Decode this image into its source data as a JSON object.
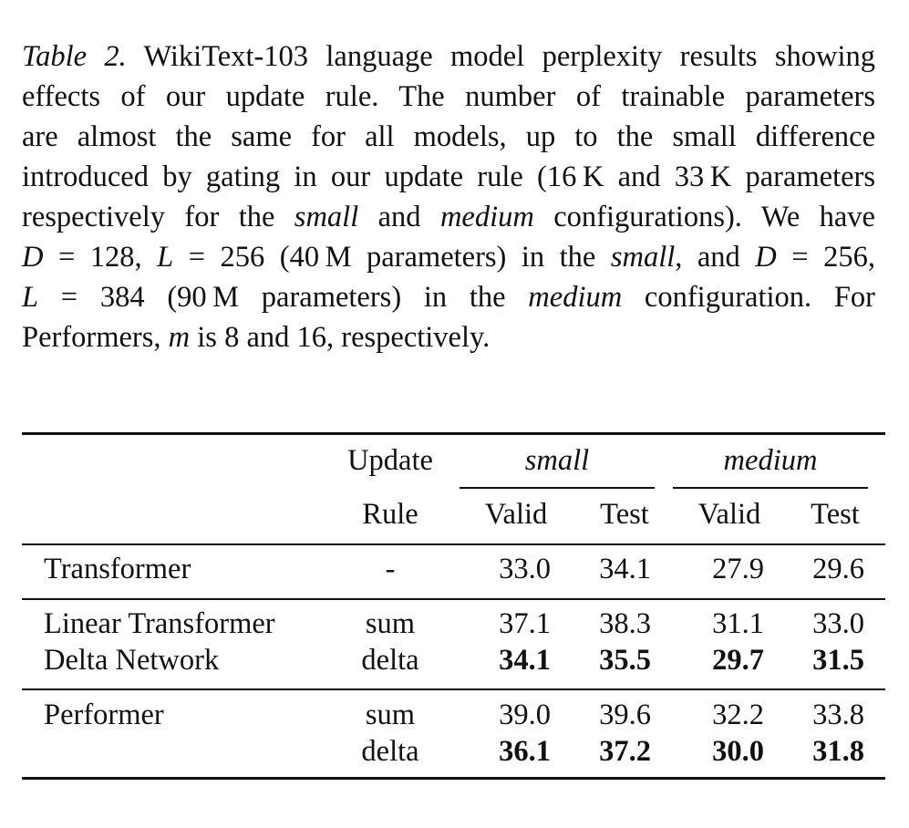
{
  "caption": {
    "label": "Table 2.",
    "lines": [
      [
        {
          "t": " WikiText-103 language model perplexity results showing"
        }
      ],
      [
        {
          "t": "effects of our update rule.  The number of trainable parameters"
        }
      ],
      [
        {
          "t": "are almost the same for all models, up to the small difference"
        }
      ],
      [
        {
          "t": "introduced by gating in our update rule (16 K and 33 K parameters"
        }
      ],
      [
        {
          "t": "respectively for the "
        },
        {
          "t": "small",
          "i": true
        },
        {
          "t": " and "
        },
        {
          "t": "medium",
          "i": true
        },
        {
          "t": " configurations). We have"
        }
      ],
      [
        {
          "t": "D",
          "i": true
        },
        {
          "t": " = 128, "
        },
        {
          "t": "L",
          "i": true
        },
        {
          "t": " = 256 (40 M parameters) in the "
        },
        {
          "t": "small",
          "i": true
        },
        {
          "t": ", and "
        },
        {
          "t": "D",
          "i": true
        },
        {
          "t": " = 256,"
        }
      ],
      [
        {
          "t": "L",
          "i": true
        },
        {
          "t": " = 384 (90 M parameters) in the "
        },
        {
          "t": "medium",
          "i": true
        },
        {
          "t": " configuration.  For"
        }
      ],
      [
        {
          "t": "Performers, "
        },
        {
          "t": "m",
          "i": true
        },
        {
          "t": " is 8 and 16, respectively."
        }
      ]
    ]
  },
  "table": {
    "header": {
      "update_top": "Update",
      "update_bottom": "Rule",
      "group_small": "small",
      "group_medium": "medium",
      "valid": "Valid",
      "test": "Test"
    },
    "rows": [
      {
        "model": "Transformer",
        "rule": "-",
        "small_valid": "33.0",
        "small_test": "34.1",
        "medium_valid": "27.9",
        "medium_test": "29.6",
        "bold": false
      },
      {
        "model": "Linear Transformer",
        "rule": "sum",
        "small_valid": "37.1",
        "small_test": "38.3",
        "medium_valid": "31.1",
        "medium_test": "33.0",
        "bold": false
      },
      {
        "model": "Delta Network",
        "rule": "delta",
        "small_valid": "34.1",
        "small_test": "35.5",
        "medium_valid": "29.7",
        "medium_test": "31.5",
        "bold": true
      },
      {
        "model": "Performer",
        "rule": "sum",
        "small_valid": "39.0",
        "small_test": "39.6",
        "medium_valid": "32.2",
        "medium_test": "33.8",
        "bold": false
      },
      {
        "model": "",
        "rule": "delta",
        "small_valid": "36.1",
        "small_test": "37.2",
        "medium_valid": "30.0",
        "medium_test": "31.8",
        "bold": true
      }
    ]
  }
}
